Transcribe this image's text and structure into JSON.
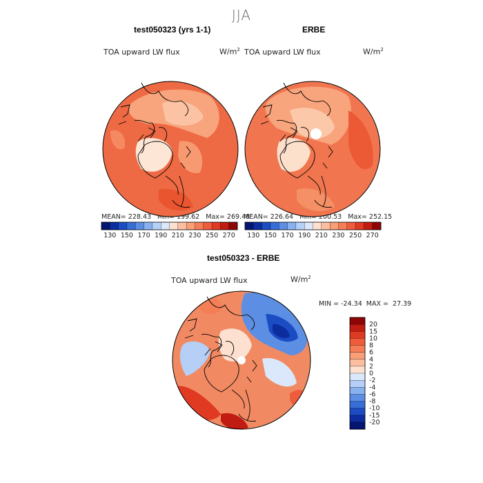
{
  "figure": {
    "season": "JJA",
    "colors": {
      "warm": [
        "#ffffff",
        "#fde0cf",
        "#fbbfa0",
        "#f89f78",
        "#f47e56",
        "#ee5c3c",
        "#e03a22",
        "#c01c12",
        "#8e0505"
      ],
      "cool": [
        "#ffffff",
        "#dbe8fb",
        "#b5cff6",
        "#88b1ee",
        "#5c8fe3",
        "#366ed6",
        "#1c4cc3",
        "#0b2d9e",
        "#041572"
      ]
    }
  },
  "chart_data": [
    {
      "type": "heatmap",
      "projection": "north-polar-stereographic",
      "title": "test050323 (yrs 1-1)",
      "variable": "TOA upward LW flux",
      "units": "W/m",
      "units_exp": "2",
      "stats": {
        "mean_label": "MEAN=",
        "mean": "228.43",
        "min_label": "Min=",
        "min": "199.62",
        "max_label": "Max=",
        "max": "269.48"
      },
      "colorbar_ticks": [
        "130",
        "150",
        "170",
        "190",
        "210",
        "230",
        "250",
        "270"
      ],
      "colorbar_levels": [
        120,
        130,
        140,
        150,
        160,
        170,
        180,
        190,
        200,
        210,
        220,
        230,
        240,
        250,
        260,
        270,
        280
      ]
    },
    {
      "type": "heatmap",
      "projection": "north-polar-stereographic",
      "title": "ERBE",
      "variable": "TOA upward LW flux",
      "units": "W/m",
      "units_exp": "2",
      "stats": {
        "mean_label": "MEAN=",
        "mean": "226.64",
        "min_label": "Min=",
        "min": "200.53",
        "max_label": "Max=",
        "max": "252.15"
      },
      "colorbar_ticks": [
        "130",
        "150",
        "170",
        "190",
        "210",
        "230",
        "250",
        "270"
      ],
      "colorbar_levels": [
        120,
        130,
        140,
        150,
        160,
        170,
        180,
        190,
        200,
        210,
        220,
        230,
        240,
        250,
        260,
        270,
        280
      ]
    },
    {
      "type": "heatmap",
      "projection": "north-polar-stereographic",
      "title": "test050323 - ERBE",
      "variable": "TOA upward LW flux",
      "units": "W/m",
      "units_exp": "2",
      "stats": {
        "min_label": "MIN =",
        "min": "-24.34",
        "max_label": "MAX =",
        "max": "27.39"
      },
      "colorbar_ticks": [
        "20",
        "15",
        "10",
        "8",
        "6",
        "4",
        "2",
        "0",
        "-2",
        "-4",
        "-6",
        "-8",
        "-10",
        "-15",
        "-20"
      ]
    }
  ]
}
